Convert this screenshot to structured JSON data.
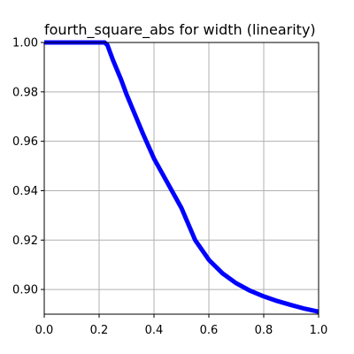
{
  "chart_data": {
    "type": "line",
    "title": "fourth_square_abs for width (linearity)",
    "xlabel": "",
    "ylabel": "",
    "xlim": [
      0.0,
      1.0
    ],
    "ylim": [
      0.89,
      1.0
    ],
    "grid": true,
    "xticks": [
      0.0,
      0.2,
      0.4,
      0.6,
      0.8,
      1.0
    ],
    "xtick_labels": [
      "0.0",
      "0.2",
      "0.4",
      "0.6",
      "0.8",
      "1.0"
    ],
    "yticks": [
      0.9,
      0.92,
      0.94,
      0.96,
      0.98,
      1.0
    ],
    "ytick_labels": [
      "0.90",
      "0.92",
      "0.94",
      "0.96",
      "0.98",
      "1.00"
    ],
    "series": [
      {
        "color": "#0000ff",
        "x": [
          0.0,
          0.1,
          0.22,
          0.23,
          0.25,
          0.28,
          0.3,
          0.33,
          0.36,
          0.4,
          0.45,
          0.5,
          0.55,
          0.6,
          0.65,
          0.7,
          0.75,
          0.8,
          0.85,
          0.9,
          0.95,
          1.0
        ],
        "y": [
          1.0,
          1.0,
          1.0,
          0.999,
          0.993,
          0.985,
          0.979,
          0.971,
          0.963,
          0.953,
          0.943,
          0.933,
          0.92,
          0.912,
          0.9065,
          0.9025,
          0.8995,
          0.8972,
          0.8953,
          0.8937,
          0.8922,
          0.891
        ]
      }
    ]
  }
}
